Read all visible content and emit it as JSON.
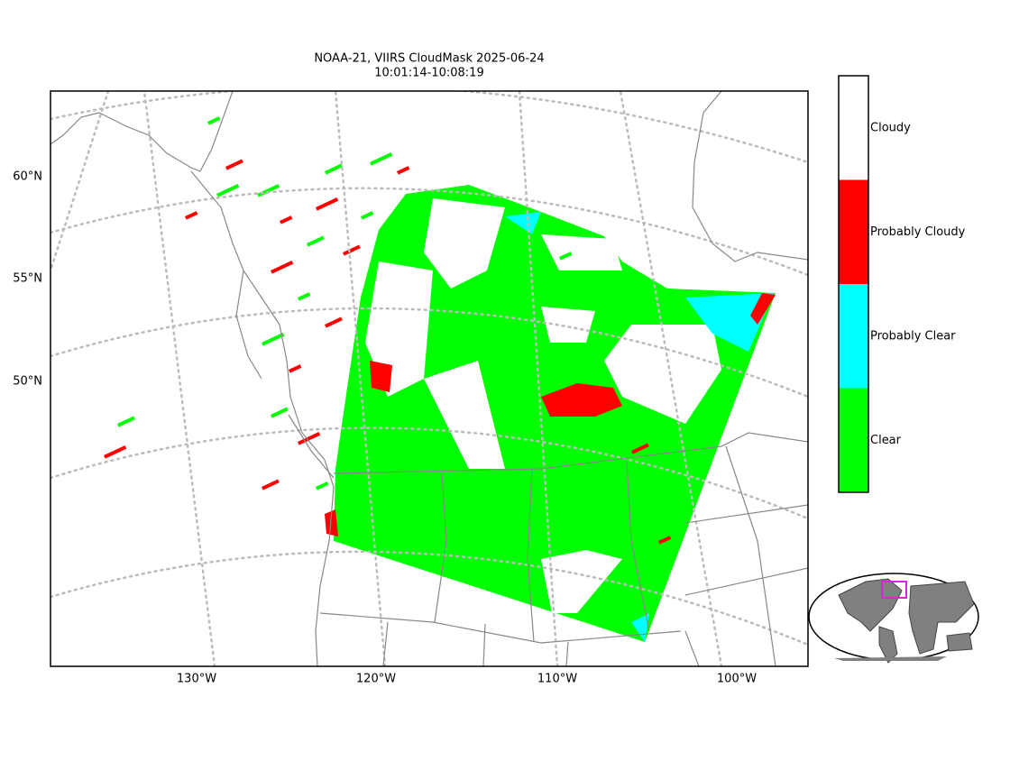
{
  "title": {
    "line1": "NOAA-21, VIIRS CloudMask 2025-06-24",
    "line2": "10:01:14-10:08:19"
  },
  "lat_labels": [
    "60°N",
    "55°N",
    "50°N"
  ],
  "lon_labels": [
    "130°W",
    "120°W",
    "110°W",
    "100°W"
  ],
  "legend": [
    {
      "label": "Cloudy",
      "color": "#ffffff"
    },
    {
      "label": "Probably Cloudy",
      "color": "#ff0000"
    },
    {
      "label": "Probably Clear",
      "color": "#00ffff"
    },
    {
      "label": "Clear",
      "color": "#00ff00"
    }
  ]
}
